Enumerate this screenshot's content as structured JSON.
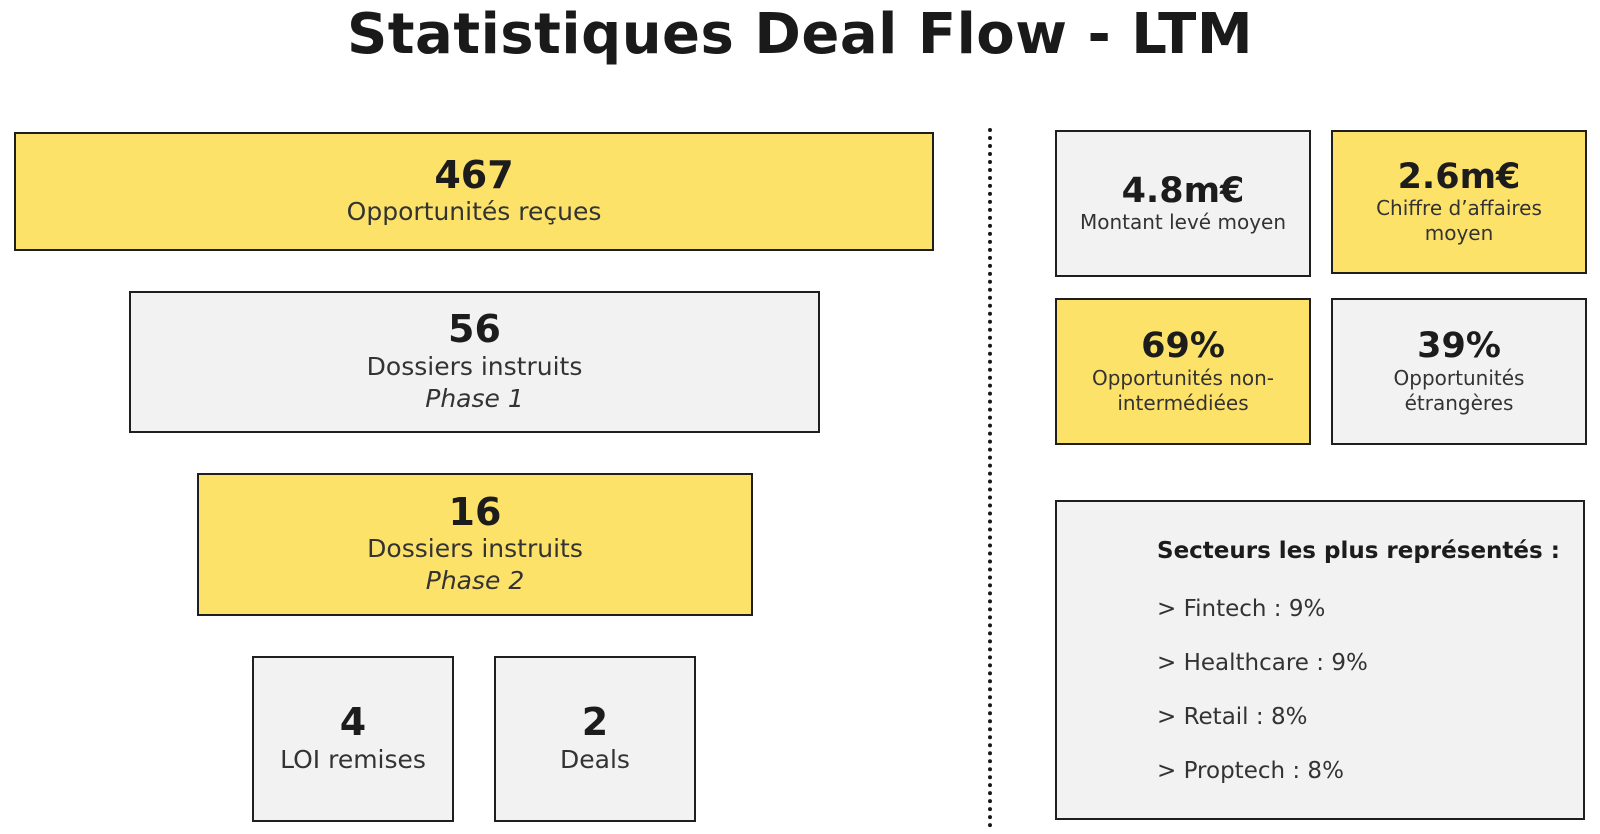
{
  "title": "Statistiques Deal Flow - LTM",
  "funnel": [
    {
      "value": "467",
      "label": "Opportunités reçues",
      "sub": ""
    },
    {
      "value": "56",
      "label": "Dossiers instruits",
      "sub": "Phase 1"
    },
    {
      "value": "16",
      "label": "Dossiers instruits",
      "sub": "Phase 2"
    }
  ],
  "bottom": [
    {
      "value": "4",
      "label": "LOI remises"
    },
    {
      "value": "2",
      "label": "Deals"
    }
  ],
  "stats": [
    {
      "value": "4.8m€",
      "label": "Montant levé moyen"
    },
    {
      "value": "2.6m€",
      "label": "Chiffre d’affaires moyen"
    },
    {
      "value": "69%",
      "label": "Opportunités non-intermédiées"
    },
    {
      "value": "39%",
      "label": "Opportunités étrangères"
    }
  ],
  "sectors": {
    "heading": "Secteurs les plus représentés :",
    "items": [
      "> Fintech : 9%",
      "> Healthcare : 9%",
      "> Retail : 8%",
      "> Proptech : 8%"
    ]
  },
  "colors": {
    "yellow": "#fde26a",
    "grey": "#f2f2f2",
    "border": "#1f1f1f"
  }
}
